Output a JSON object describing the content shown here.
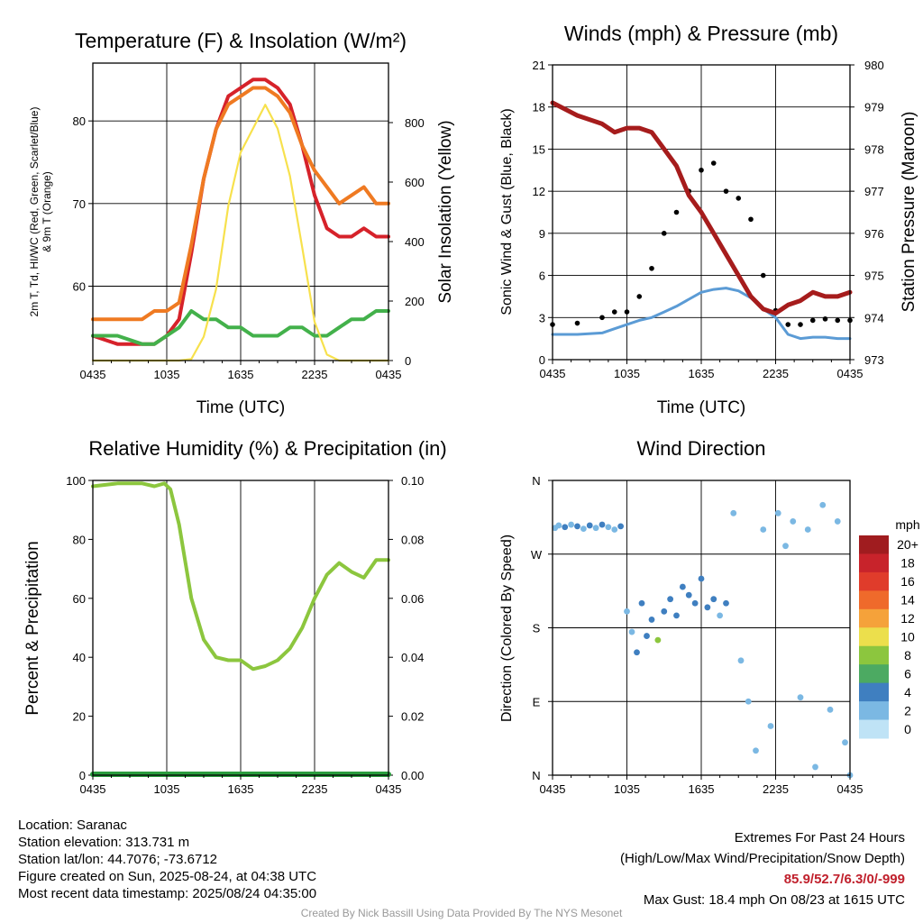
{
  "panels": {
    "temp": {
      "title": "Temperature (F) & Insolation (W/m²)",
      "xlabel": "Time (UTC)",
      "ylabel_left_lines": [
        "2m T, Td, HI/WC (Red, Green, Scarlet/Blue)",
        "& 9m T (Orange)"
      ],
      "ylabel_right": "Solar Insolation (Yellow)"
    },
    "wind": {
      "title": "Winds (mph) & Pressure (mb)",
      "xlabel": "Time (UTC)",
      "ylabel_left": "Sonic Wind & Gust (Blue, Black)",
      "ylabel_right": "Station Pressure (Maroon)"
    },
    "rh": {
      "title": "Relative Humidity (%) & Precipitation (in)",
      "ylabel_left": "Percent & Precipitation"
    },
    "dir": {
      "title": "Wind Direction",
      "ylabel_left": "Direction (Colored By Speed)",
      "colorbar_title": "mph",
      "colorbar_labels": [
        "20+",
        "18",
        "16",
        "14",
        "12",
        "10",
        "8",
        "6",
        "4",
        "2",
        "0"
      ]
    }
  },
  "footer": {
    "location": "Location: Saranac",
    "elevation": "Station elevation: 313.731 m",
    "latlon": "Station lat/lon: 44.7076; -73.6712",
    "created": "Figure created on Sun, 2025-08-24, at 04:38 UTC",
    "recent": "Most recent data timestamp: 2025/08/24 04:35:00",
    "extremes_title": "Extremes For Past 24 Hours",
    "extremes_sub": "(High/Low/Max Wind/Precipitation/Snow Depth)",
    "extremes_values": "85.9/52.7/6.3/0/-999",
    "max_gust": "Max Gust: 18.4 mph On 08/23 at 1615 UTC",
    "credit": "Created By Nick Bassill Using Data Provided By The NYS Mesonet"
  },
  "chart_data": [
    {
      "type": "line",
      "title": "Temperature (F) & Insolation (W/m²)",
      "xlabel": "Time (UTC)",
      "x_ticks": [
        "0435",
        "1035",
        "1635",
        "2235",
        "0435"
      ],
      "x": [
        0,
        2,
        4,
        5,
        6,
        7,
        8,
        9,
        10,
        11,
        12,
        13,
        14,
        15,
        16,
        17,
        18,
        19,
        20,
        21,
        22,
        23,
        24
      ],
      "ylim_left": [
        51,
        87
      ],
      "yticks_left": [
        60,
        70,
        80
      ],
      "ylim_right": [
        0,
        1000
      ],
      "yticks_right": [
        0,
        200,
        400,
        600,
        800
      ],
      "series": [
        {
          "color": "#d6222a",
          "axis": "left",
          "values": [
            54,
            53,
            53,
            53,
            54,
            56,
            64,
            73,
            79,
            83,
            84,
            85,
            85,
            84,
            82,
            77,
            71,
            67,
            66,
            66,
            67,
            66,
            66
          ]
        },
        {
          "color": "#ef7a22",
          "axis": "left",
          "values": [
            56,
            56,
            56,
            57,
            57,
            58,
            65,
            73,
            79,
            82,
            83,
            84,
            84,
            83,
            81,
            77,
            74,
            72,
            70,
            71,
            72,
            70,
            70
          ]
        },
        {
          "color": "#43b14b",
          "axis": "left",
          "values": [
            54,
            54,
            53,
            53,
            54,
            55,
            57,
            56,
            56,
            55,
            55,
            54,
            54,
            54,
            55,
            55,
            54,
            54,
            55,
            56,
            56,
            57,
            57
          ]
        },
        {
          "color": "#f7e14d",
          "axis": "right",
          "values": [
            0,
            0,
            0,
            0,
            0,
            0,
            5,
            80,
            240,
            520,
            700,
            780,
            860,
            780,
            620,
            380,
            130,
            20,
            0,
            0,
            0,
            0,
            0
          ]
        }
      ]
    },
    {
      "type": "line",
      "title": "Winds (mph) & Pressure (mb)",
      "xlabel": "Time (UTC)",
      "x_ticks": [
        "0435",
        "1035",
        "1635",
        "2235",
        "0435"
      ],
      "x": [
        0,
        2,
        4,
        5,
        6,
        7,
        8,
        9,
        10,
        11,
        12,
        13,
        14,
        15,
        16,
        17,
        18,
        19,
        20,
        21,
        22,
        23,
        24
      ],
      "ylim_left": [
        0,
        21
      ],
      "yticks_left": [
        0,
        3,
        6,
        9,
        12,
        15,
        18,
        21
      ],
      "ylim_right": [
        973,
        980
      ],
      "yticks_right": [
        973,
        974,
        975,
        976,
        977,
        978,
        979,
        980
      ],
      "series": [
        {
          "color": "#5b9bd5",
          "axis": "left",
          "values": [
            1.8,
            1.8,
            1.9,
            2.2,
            2.5,
            2.8,
            3.0,
            3.4,
            3.8,
            4.3,
            4.8,
            5.0,
            5.1,
            4.9,
            4.4,
            3.6,
            3.0,
            1.8,
            1.5,
            1.6,
            1.6,
            1.5,
            1.5
          ]
        },
        {
          "color": "#000000",
          "axis": "left",
          "values": [
            2.5,
            2.6,
            3.0,
            3.4,
            3.4,
            4.5,
            6.5,
            9.0,
            10.5,
            12.0,
            13.5,
            14.0,
            12.0,
            11.5,
            10.0,
            6.0,
            3.5,
            2.5,
            2.5,
            2.8,
            2.9,
            2.8,
            2.8
          ]
        },
        {
          "color": "#a61c1c",
          "axis": "right",
          "values": [
            979.1,
            978.8,
            978.6,
            978.4,
            978.5,
            978.5,
            978.4,
            978.0,
            977.6,
            976.9,
            976.5,
            976.0,
            975.5,
            975.0,
            974.5,
            974.2,
            974.1,
            974.3,
            974.4,
            974.6,
            974.5,
            974.5,
            974.6
          ]
        }
      ]
    },
    {
      "type": "line",
      "title": "Relative Humidity (%) & Precipitation (in)",
      "x_ticks": [
        "0435",
        "1035",
        "1635",
        "2235",
        "0435"
      ],
      "x": [
        0,
        2,
        4,
        5,
        5.8,
        6.3,
        7,
        8,
        9,
        10,
        11,
        12,
        13,
        14,
        15,
        16,
        17,
        18,
        19,
        20,
        21,
        22,
        23,
        24
      ],
      "ylim_left": [
        0,
        100
      ],
      "yticks_left": [
        0,
        20,
        40,
        60,
        80,
        100
      ],
      "ylim_right": [
        0,
        0.1
      ],
      "yticks_right": [
        "0.00",
        "0.02",
        "0.04",
        "0.06",
        "0.08",
        "0.10"
      ],
      "series": [
        {
          "color": "#8cc63e",
          "axis": "left",
          "values": [
            98,
            99,
            99,
            98,
            99,
            97,
            85,
            60,
            46,
            40,
            39,
            39,
            36,
            37,
            39,
            43,
            50,
            60,
            68,
            72,
            69,
            67,
            73,
            73
          ]
        },
        {
          "color": "#2a9d3e",
          "axis": "right",
          "values": [
            0,
            0,
            0,
            0,
            0,
            0,
            0,
            0,
            0,
            0,
            0,
            0,
            0,
            0,
            0,
            0,
            0,
            0,
            0,
            0,
            0,
            0,
            0,
            0
          ]
        }
      ]
    },
    {
      "type": "scatter",
      "title": "Wind Direction",
      "x_ticks": [
        "0435",
        "1035",
        "1635",
        "2235",
        "0435"
      ],
      "y_ticks": [
        "N",
        "E",
        "S",
        "W",
        "N"
      ],
      "ylim": [
        0,
        360
      ],
      "colorbar": {
        "title": "mph",
        "labels": [
          "20+",
          "18",
          "16",
          "14",
          "12",
          "10",
          "8",
          "6",
          "4",
          "2",
          "0"
        ],
        "colors": [
          "#a01c1f",
          "#c8232b",
          "#e03c2b",
          "#ef6a2b",
          "#f5a23a",
          "#ecdf4c",
          "#8cc63e",
          "#4caa62",
          "#3f7fc0",
          "#7bb8e3",
          "#bfe3f6"
        ]
      },
      "points": [
        [
          0.2,
          302,
          2
        ],
        [
          0.5,
          305,
          2
        ],
        [
          1.0,
          303,
          3
        ],
        [
          1.5,
          306,
          2
        ],
        [
          2.0,
          304,
          3
        ],
        [
          2.5,
          301,
          2
        ],
        [
          3.0,
          305,
          3
        ],
        [
          3.5,
          302,
          2
        ],
        [
          4.0,
          306,
          3
        ],
        [
          4.5,
          303,
          2
        ],
        [
          5.0,
          300,
          2
        ],
        [
          5.5,
          304,
          3
        ],
        [
          6.0,
          200,
          1
        ],
        [
          6.4,
          175,
          2
        ],
        [
          6.8,
          150,
          3
        ],
        [
          7.2,
          210,
          4
        ],
        [
          7.6,
          170,
          4
        ],
        [
          8.0,
          190,
          3
        ],
        [
          8.5,
          165,
          7
        ],
        [
          9.0,
          200,
          4
        ],
        [
          9.5,
          215,
          4
        ],
        [
          10.0,
          195,
          4
        ],
        [
          10.5,
          230,
          4
        ],
        [
          11.0,
          220,
          4
        ],
        [
          11.5,
          210,
          3
        ],
        [
          12.0,
          240,
          4
        ],
        [
          12.5,
          205,
          3
        ],
        [
          13.0,
          215,
          3
        ],
        [
          13.5,
          195,
          2
        ],
        [
          14.0,
          210,
          3
        ],
        [
          14.6,
          320,
          1
        ],
        [
          15.2,
          140,
          1
        ],
        [
          15.8,
          90,
          1
        ],
        [
          16.4,
          30,
          1
        ],
        [
          17.0,
          300,
          1
        ],
        [
          17.6,
          60,
          1
        ],
        [
          18.2,
          320,
          1
        ],
        [
          18.8,
          280,
          1
        ],
        [
          19.4,
          310,
          1
        ],
        [
          20.0,
          95,
          1
        ],
        [
          20.6,
          300,
          1
        ],
        [
          21.2,
          10,
          1
        ],
        [
          21.8,
          330,
          1
        ],
        [
          22.4,
          80,
          1
        ],
        [
          23.0,
          310,
          1
        ],
        [
          23.6,
          40,
          1
        ],
        [
          24.0,
          0,
          1
        ]
      ]
    }
  ]
}
